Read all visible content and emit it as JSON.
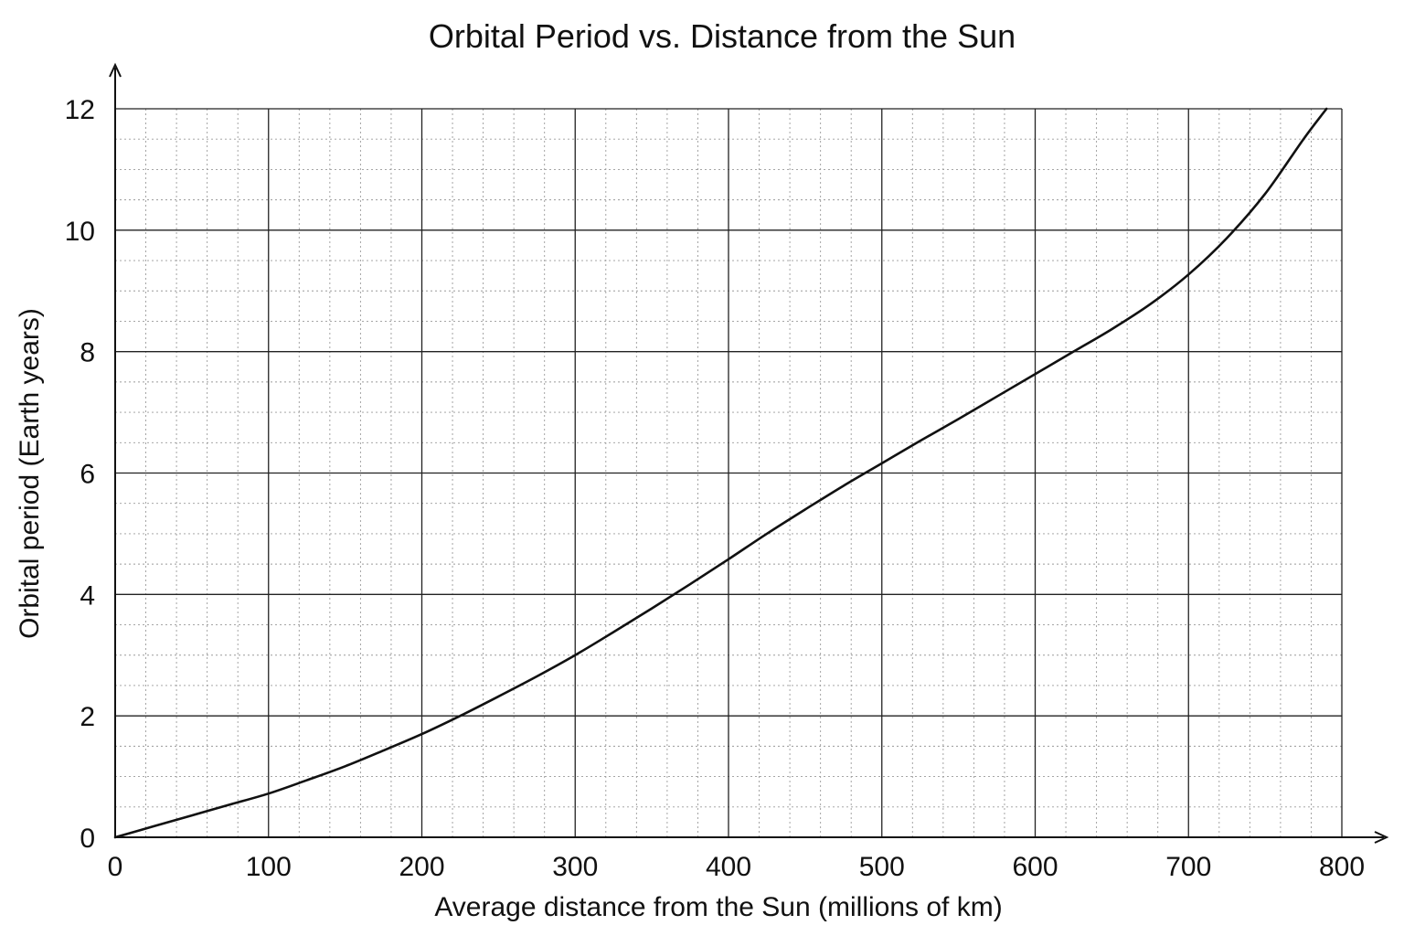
{
  "chart_data": {
    "type": "line",
    "title": "Orbital Period vs. Distance from the Sun",
    "xlabel": "Average distance from the Sun (millions of km)",
    "ylabel": "Orbital period (Earth years)",
    "xlim": [
      0,
      800
    ],
    "ylim": [
      0,
      12
    ],
    "x_ticks": [
      "0",
      "100",
      "200",
      "300",
      "400",
      "500",
      "600",
      "700",
      "800"
    ],
    "y_ticks": [
      "0",
      "2",
      "4",
      "6",
      "8",
      "10",
      "12"
    ],
    "x_minor_per_major": 5,
    "y_minor_per_major": 4,
    "grid": true,
    "legend": "none",
    "series": [
      {
        "color": "#111111",
        "x": [
          0,
          25,
          50,
          75,
          100,
          125,
          150,
          175,
          200,
          225,
          250,
          275,
          300,
          325,
          350,
          375,
          400,
          425,
          450,
          475,
          500,
          525,
          550,
          575,
          600,
          625,
          650,
          675,
          700,
          725,
          750,
          775,
          790
        ],
        "y": [
          0,
          0.18,
          0.36,
          0.54,
          0.72,
          0.94,
          1.17,
          1.43,
          1.7,
          2.0,
          2.32,
          2.65,
          3.0,
          3.38,
          3.77,
          4.17,
          4.58,
          5.0,
          5.4,
          5.79,
          6.16,
          6.53,
          6.89,
          7.26,
          7.63,
          8.0,
          8.37,
          8.78,
          9.27,
          9.87,
          10.6,
          11.5,
          12.0
        ]
      }
    ]
  }
}
